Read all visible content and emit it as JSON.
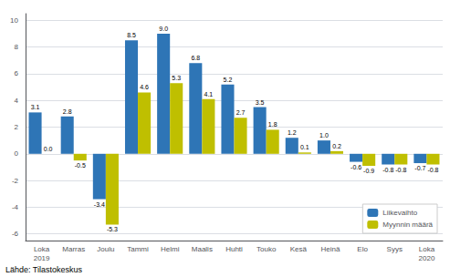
{
  "chart_data": {
    "type": "bar",
    "categories": [
      "Loka\n2019",
      "Marras",
      "Joulu",
      "Tammi",
      "Helmi",
      "Maalis",
      "Huhti",
      "Touko",
      "Kesä",
      "Heinä",
      "Elo",
      "Syys",
      "Loka\n2020"
    ],
    "series": [
      {
        "name": "Liikevaihto",
        "color": "#2E75B6",
        "values": [
          3.1,
          2.8,
          -3.4,
          8.5,
          9.0,
          6.8,
          5.2,
          3.5,
          1.2,
          1.0,
          -0.6,
          -0.8,
          -0.7
        ],
        "value_labels": [
          "3.1",
          "2.8",
          "-3.4",
          "8.5",
          "9.0",
          "6.8",
          "5.2",
          "3.5",
          "1.2",
          "1.0",
          "-0.6",
          "-0.8",
          "-0.7"
        ]
      },
      {
        "name": "Myynnin määrä",
        "color": "#BFBF00",
        "values": [
          0.0,
          -0.5,
          -5.3,
          4.6,
          5.3,
          4.1,
          2.7,
          1.8,
          0.1,
          0.2,
          -0.9,
          -0.8,
          -0.8
        ],
        "value_labels": [
          "0.0",
          "-0.5",
          "-5.3",
          "4.6",
          "5.3",
          "4.1",
          "2.7",
          "1.8",
          "0.1",
          "0.2",
          "-0.9",
          "-0.8",
          "-0.8"
        ]
      }
    ],
    "ylim": [
      -6.5,
      10.5
    ],
    "yticks": [
      -6,
      -4,
      -2,
      0,
      2,
      4,
      6,
      8,
      10
    ],
    "grid": true,
    "legend": "lower right",
    "data_labels": true,
    "annotations": [
      "Lähde: Tilastokeskus"
    ]
  }
}
